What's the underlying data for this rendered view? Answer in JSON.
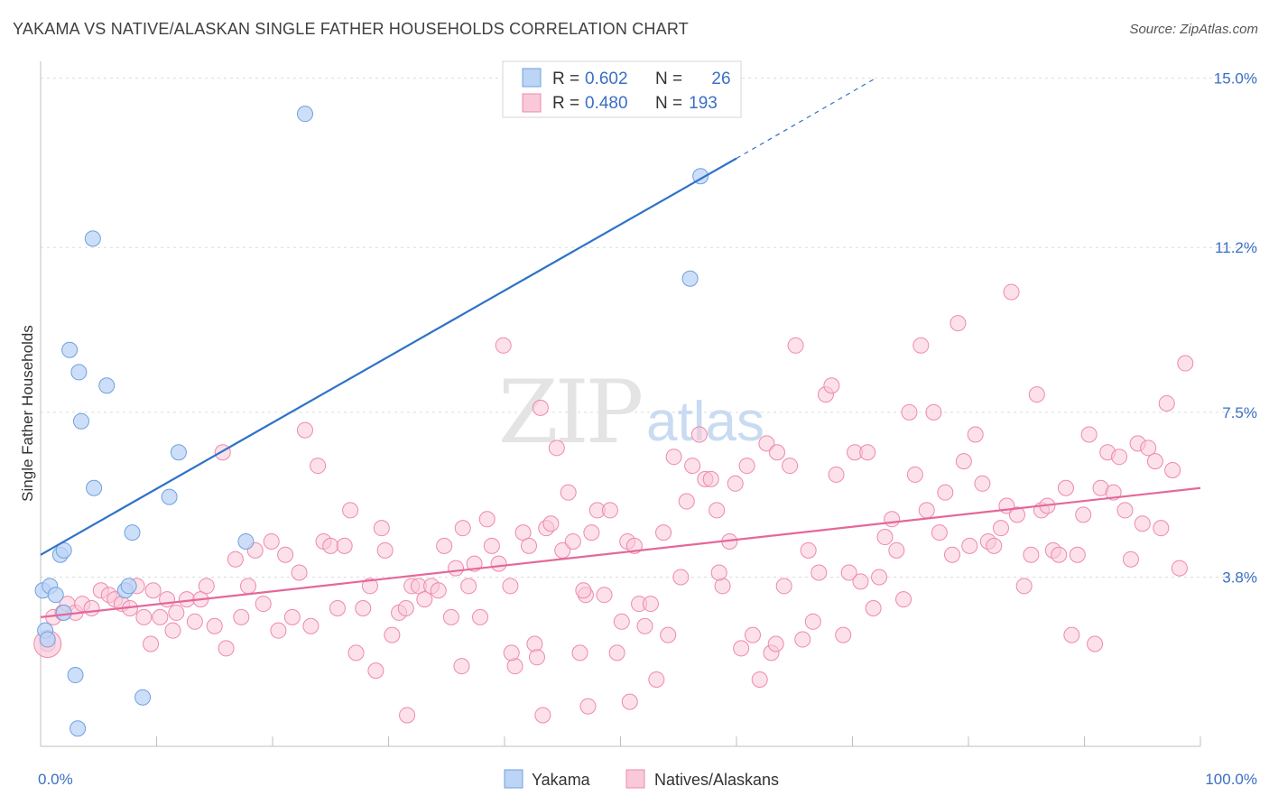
{
  "title": "YAKAMA VS NATIVE/ALASKAN SINGLE FATHER HOUSEHOLDS CORRELATION CHART",
  "source": "Source: ZipAtlas.com",
  "watermark": {
    "zip": "ZIP",
    "atlas": "atlas"
  },
  "colors": {
    "yakama": "#6ea0e0",
    "yakama_fill": "#bcd4f5",
    "natives": "#ee89ab",
    "natives_fill": "#f9c9d9",
    "yakama_line": "#2f72c8",
    "natives_line": "#e4689a",
    "tick": "#3a6fc4"
  },
  "legend": {
    "rows": [
      {
        "r_label": "R = ",
        "r_value": "0.602",
        "n_label": "N = ",
        "n_value": "26"
      },
      {
        "r_label": "R = ",
        "r_value": "0.480",
        "n_label": "N = ",
        "n_value": "193"
      }
    ]
  },
  "bottom_legend": [
    "Yakama",
    "Natives/Alaskans"
  ],
  "chart_data": {
    "type": "scatter",
    "title": "YAKAMA VS NATIVE/ALASKAN SINGLE FATHER HOUSEHOLDS CORRELATION CHART",
    "xlabel": "",
    "ylabel": "Single Father Households",
    "xlim": [
      0,
      100
    ],
    "ylim": [
      0,
      15.5
    ],
    "x_tick_labels": [
      "0.0%",
      "100.0%"
    ],
    "y_ticks": [
      3.8,
      7.5,
      11.2,
      15.0
    ],
    "y_tick_labels": [
      "3.8%",
      "7.5%",
      "11.2%",
      "15.0%"
    ],
    "grid": true,
    "legend_placement": "top-center",
    "series": [
      {
        "name": "Yakama",
        "r": 0.602,
        "n": 26,
        "trend": {
          "x0": 0,
          "y0": 4.3,
          "x1": 60,
          "y1": 13.2,
          "dash_to_x": 72,
          "dash_to_y": 15.0
        },
        "points": [
          [
            0.2,
            3.5
          ],
          [
            0.8,
            3.6
          ],
          [
            1.3,
            3.4
          ],
          [
            0.4,
            2.6
          ],
          [
            0.6,
            2.4
          ],
          [
            2.0,
            3.0
          ],
          [
            1.7,
            4.3
          ],
          [
            2.0,
            4.4
          ],
          [
            2.5,
            8.9
          ],
          [
            3.3,
            8.4
          ],
          [
            3.5,
            7.3
          ],
          [
            4.5,
            11.4
          ],
          [
            4.6,
            5.8
          ],
          [
            5.7,
            8.1
          ],
          [
            7.3,
            3.5
          ],
          [
            7.6,
            3.6
          ],
          [
            7.9,
            4.8
          ],
          [
            11.1,
            5.6
          ],
          [
            11.9,
            6.6
          ],
          [
            17.7,
            4.6
          ],
          [
            22.8,
            14.2
          ],
          [
            3.0,
            1.6
          ],
          [
            8.8,
            1.1
          ],
          [
            3.2,
            0.4
          ],
          [
            56.0,
            10.5
          ],
          [
            56.9,
            12.8
          ]
        ]
      },
      {
        "name": "Natives/Alaskans",
        "r": 0.48,
        "n": 193,
        "trend": {
          "x0": 0,
          "y0": 2.9,
          "x1": 100,
          "y1": 5.8
        },
        "points": [
          [
            0.6,
            2.3
          ],
          [
            1.1,
            2.9
          ],
          [
            1.9,
            3.0
          ],
          [
            2.3,
            3.2
          ],
          [
            3.0,
            3.0
          ],
          [
            3.6,
            3.2
          ],
          [
            4.4,
            3.1
          ],
          [
            5.2,
            3.5
          ],
          [
            5.9,
            3.4
          ],
          [
            6.4,
            3.3
          ],
          [
            7.0,
            3.2
          ],
          [
            7.7,
            3.1
          ],
          [
            8.3,
            3.6
          ],
          [
            8.9,
            2.9
          ],
          [
            9.5,
            2.3
          ],
          [
            9.7,
            3.5
          ],
          [
            10.3,
            2.9
          ],
          [
            10.9,
            3.3
          ],
          [
            11.4,
            2.6
          ],
          [
            11.7,
            3.0
          ],
          [
            12.6,
            3.3
          ],
          [
            13.3,
            2.8
          ],
          [
            13.8,
            3.3
          ],
          [
            14.3,
            3.6
          ],
          [
            15.0,
            2.7
          ],
          [
            15.7,
            6.6
          ],
          [
            16.0,
            2.2
          ],
          [
            16.8,
            4.2
          ],
          [
            17.3,
            2.9
          ],
          [
            17.9,
            3.6
          ],
          [
            18.5,
            4.4
          ],
          [
            19.2,
            3.2
          ],
          [
            19.9,
            4.6
          ],
          [
            20.5,
            2.6
          ],
          [
            21.1,
            4.3
          ],
          [
            21.7,
            2.9
          ],
          [
            22.3,
            3.9
          ],
          [
            22.8,
            7.1
          ],
          [
            23.3,
            2.7
          ],
          [
            23.9,
            6.3
          ],
          [
            24.4,
            4.6
          ],
          [
            25.0,
            4.5
          ],
          [
            25.6,
            3.1
          ],
          [
            26.2,
            4.5
          ],
          [
            26.7,
            5.3
          ],
          [
            27.2,
            2.1
          ],
          [
            27.8,
            3.1
          ],
          [
            28.4,
            3.6
          ],
          [
            28.9,
            1.7
          ],
          [
            29.4,
            4.9
          ],
          [
            29.7,
            4.4
          ],
          [
            30.3,
            2.5
          ],
          [
            30.9,
            3.0
          ],
          [
            31.5,
            3.1
          ],
          [
            32.0,
            3.6
          ],
          [
            32.6,
            3.6
          ],
          [
            33.1,
            3.3
          ],
          [
            33.7,
            3.6
          ],
          [
            34.3,
            3.5
          ],
          [
            34.8,
            4.5
          ],
          [
            35.4,
            2.9
          ],
          [
            35.8,
            4.0
          ],
          [
            36.4,
            4.9
          ],
          [
            36.9,
            3.6
          ],
          [
            37.4,
            4.1
          ],
          [
            37.9,
            2.9
          ],
          [
            38.5,
            5.1
          ],
          [
            38.9,
            4.5
          ],
          [
            39.5,
            4.1
          ],
          [
            39.9,
            9.0
          ],
          [
            40.5,
            3.6
          ],
          [
            40.9,
            1.8
          ],
          [
            41.6,
            4.8
          ],
          [
            42.1,
            4.5
          ],
          [
            42.6,
            2.3
          ],
          [
            43.1,
            7.6
          ],
          [
            43.6,
            4.9
          ],
          [
            44.0,
            5.0
          ],
          [
            44.5,
            6.7
          ],
          [
            45.0,
            4.4
          ],
          [
            45.5,
            5.7
          ],
          [
            45.9,
            4.6
          ],
          [
            46.5,
            2.1
          ],
          [
            47.0,
            3.4
          ],
          [
            47.5,
            4.8
          ],
          [
            48.0,
            5.3
          ],
          [
            48.6,
            3.4
          ],
          [
            49.1,
            5.3
          ],
          [
            49.7,
            2.1
          ],
          [
            50.1,
            2.8
          ],
          [
            50.6,
            4.6
          ],
          [
            51.2,
            4.5
          ],
          [
            51.6,
            3.2
          ],
          [
            52.1,
            2.7
          ],
          [
            52.6,
            3.2
          ],
          [
            53.1,
            1.5
          ],
          [
            53.7,
            4.8
          ],
          [
            54.1,
            2.5
          ],
          [
            54.6,
            6.5
          ],
          [
            55.2,
            3.8
          ],
          [
            55.7,
            5.5
          ],
          [
            56.2,
            6.3
          ],
          [
            56.8,
            7.0
          ],
          [
            57.3,
            6.0
          ],
          [
            57.8,
            6.0
          ],
          [
            58.3,
            5.3
          ],
          [
            58.8,
            3.6
          ],
          [
            59.4,
            4.6
          ],
          [
            59.9,
            5.9
          ],
          [
            60.4,
            2.2
          ],
          [
            60.9,
            6.3
          ],
          [
            61.4,
            2.5
          ],
          [
            62.0,
            1.5
          ],
          [
            62.6,
            6.8
          ],
          [
            63.0,
            2.1
          ],
          [
            63.5,
            6.6
          ],
          [
            64.1,
            3.6
          ],
          [
            64.6,
            6.3
          ],
          [
            65.1,
            9.0
          ],
          [
            65.7,
            2.4
          ],
          [
            66.2,
            4.4
          ],
          [
            66.6,
            2.8
          ],
          [
            67.1,
            3.9
          ],
          [
            67.7,
            7.9
          ],
          [
            68.2,
            8.1
          ],
          [
            68.6,
            6.1
          ],
          [
            69.2,
            2.5
          ],
          [
            69.7,
            3.9
          ],
          [
            70.2,
            6.6
          ],
          [
            70.7,
            3.7
          ],
          [
            71.3,
            6.6
          ],
          [
            71.8,
            3.1
          ],
          [
            72.3,
            3.8
          ],
          [
            72.8,
            4.7
          ],
          [
            73.4,
            5.1
          ],
          [
            73.8,
            4.4
          ],
          [
            74.4,
            3.3
          ],
          [
            74.9,
            7.5
          ],
          [
            75.4,
            6.1
          ],
          [
            75.9,
            9.0
          ],
          [
            76.4,
            5.3
          ],
          [
            77.0,
            7.5
          ],
          [
            77.5,
            4.8
          ],
          [
            78.0,
            5.7
          ],
          [
            78.6,
            4.3
          ],
          [
            79.1,
            9.5
          ],
          [
            79.6,
            6.4
          ],
          [
            80.1,
            4.5
          ],
          [
            80.6,
            7.0
          ],
          [
            81.2,
            5.9
          ],
          [
            81.7,
            4.6
          ],
          [
            82.2,
            4.5
          ],
          [
            82.8,
            4.9
          ],
          [
            83.3,
            5.4
          ],
          [
            83.7,
            10.2
          ],
          [
            84.2,
            5.2
          ],
          [
            84.8,
            3.6
          ],
          [
            85.4,
            4.3
          ],
          [
            85.9,
            7.9
          ],
          [
            86.3,
            5.3
          ],
          [
            86.8,
            5.4
          ],
          [
            87.3,
            4.4
          ],
          [
            87.8,
            4.3
          ],
          [
            88.4,
            5.8
          ],
          [
            88.9,
            2.5
          ],
          [
            89.4,
            4.3
          ],
          [
            89.9,
            5.2
          ],
          [
            90.4,
            7.0
          ],
          [
            90.9,
            2.3
          ],
          [
            91.4,
            5.8
          ],
          [
            92.0,
            6.6
          ],
          [
            92.5,
            5.7
          ],
          [
            93.0,
            6.5
          ],
          [
            93.5,
            5.3
          ],
          [
            94.0,
            4.2
          ],
          [
            94.6,
            6.8
          ],
          [
            95.0,
            5.0
          ],
          [
            95.5,
            6.7
          ],
          [
            96.1,
            6.4
          ],
          [
            96.6,
            4.9
          ],
          [
            97.1,
            7.7
          ],
          [
            97.6,
            6.2
          ],
          [
            98.2,
            4.0
          ],
          [
            98.7,
            8.6
          ],
          [
            47.2,
            0.9
          ],
          [
            43.3,
            0.7
          ],
          [
            31.6,
            0.7
          ],
          [
            42.8,
            2.0
          ],
          [
            63.4,
            2.3
          ],
          [
            50.8,
            1.0
          ],
          [
            58.5,
            3.9
          ],
          [
            46.8,
            3.5
          ],
          [
            36.3,
            1.8
          ],
          [
            40.6,
            2.1
          ]
        ]
      }
    ]
  }
}
